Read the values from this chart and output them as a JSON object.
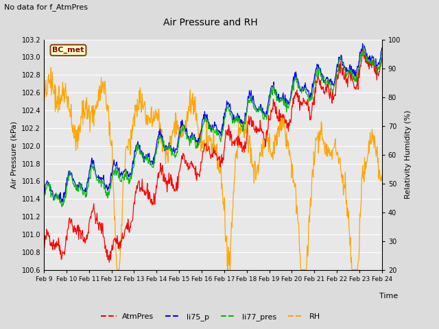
{
  "title": "Air Pressure and RH",
  "subtitle": "No data for f_AtmPres",
  "xlabel": "Time",
  "ylabel_left": "Air Pressure (kPa)",
  "ylabel_right": "Relativity Humidity (%)",
  "annotation": "BC_met",
  "ylim_left": [
    100.6,
    103.2
  ],
  "ylim_right": [
    20,
    100
  ],
  "yticks_left": [
    100.6,
    100.8,
    101.0,
    101.2,
    101.4,
    101.6,
    101.8,
    102.0,
    102.2,
    102.4,
    102.6,
    102.8,
    103.0,
    103.2
  ],
  "yticks_right": [
    20,
    30,
    40,
    50,
    60,
    70,
    80,
    90,
    100
  ],
  "xticklabels": [
    "Feb 9",
    "Feb 10",
    "Feb 11",
    "Feb 12",
    "Feb 13",
    "Feb 14",
    "Feb 15",
    "Feb 16",
    "Feb 17",
    "Feb 18",
    "Feb 19",
    "Feb 20",
    "Feb 21",
    "Feb 22",
    "Feb 23",
    "Feb 24"
  ],
  "colors": {
    "AtmPres": "#FF0000",
    "li75_p": "#0000FF",
    "li77_pres": "#00BB00",
    "RH": "#FFA500"
  },
  "legend_labels": [
    "AtmPres",
    "li75_p",
    "li77_pres",
    "RH"
  ],
  "background_color": "#DCDCDC",
  "plot_bg_color": "#E8E8E8",
  "grid_color": "#FFFFFF",
  "seed": 42
}
